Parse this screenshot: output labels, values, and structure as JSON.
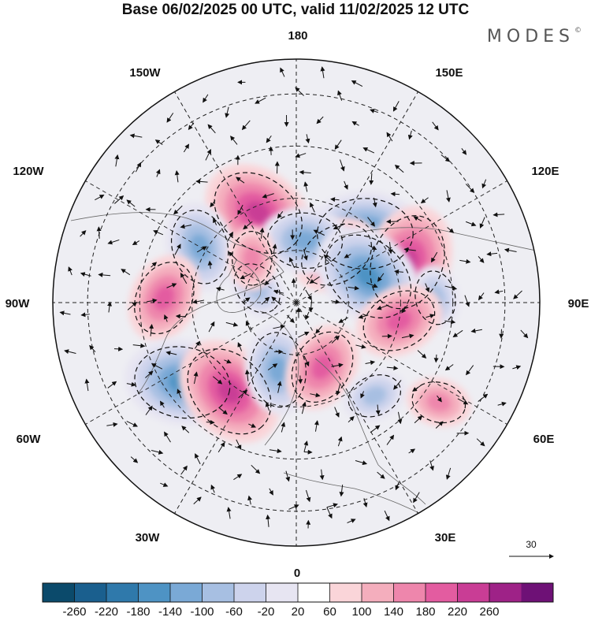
{
  "title": "Base 06/02/2025 00 UTC, valid 11/02/2025 12 UTC",
  "brand": "MODES",
  "brand_mark": "©",
  "meridian_labels": {
    "top": "180",
    "bottom": "0",
    "left": "90W",
    "right": "90E",
    "nw_upper": "150W",
    "nw_lower": "120W",
    "ne_upper": "150E",
    "ne_lower": "120E",
    "sw_upper": "60W",
    "sw_lower": "30W",
    "se_upper": "60E",
    "se_lower": "30E"
  },
  "reference_vector": {
    "label": "30"
  },
  "colorbar": {
    "ticks": [
      "-260",
      "-220",
      "-180",
      "-140",
      "-100",
      "-60",
      "-20",
      "20",
      "60",
      "100",
      "140",
      "180",
      "220",
      "260"
    ],
    "colors": [
      "#0b4a6b",
      "#1a5f8e",
      "#2f79ab",
      "#4e93c4",
      "#7aa9d6",
      "#a7bfe2",
      "#cdd3ec",
      "#e7e5f2",
      "#ffffff",
      "#fad5d9",
      "#f4aebd",
      "#ee86ac",
      "#e35ca0",
      "#c93d95",
      "#9e2287",
      "#6e1176"
    ]
  },
  "anomalies": [
    {
      "c": "neg",
      "lvl": 3,
      "lon": 135,
      "lat": 62
    },
    {
      "c": "pos",
      "lvl": 3,
      "lon": -157,
      "lat": 62
    },
    {
      "c": "neg",
      "lvl": 2,
      "lon": -120,
      "lat": 58
    },
    {
      "c": "pos",
      "lvl": 3,
      "lon": 110,
      "lat": 56
    },
    {
      "c": "pos",
      "lvl": 2,
      "lon": 140,
      "lat": 72
    },
    {
      "c": "neg",
      "lvl": 2,
      "lon": 172,
      "lat": 72
    },
    {
      "c": "neg",
      "lvl": 3,
      "lon": 110,
      "lat": 68
    },
    {
      "c": "neg",
      "lvl": 1,
      "lon": 92,
      "lat": 50
    },
    {
      "c": "pos",
      "lvl": 2,
      "lon": -92,
      "lat": 52
    },
    {
      "c": "pos",
      "lvl": 2,
      "lon": 80,
      "lat": 60
    },
    {
      "c": "neg",
      "lvl": 3,
      "lon": -55,
      "lat": 50
    },
    {
      "c": "pos",
      "lvl": 3,
      "lon": -37,
      "lat": 58
    },
    {
      "c": "neg",
      "lvl": 2,
      "lon": -15,
      "lat": 70
    },
    {
      "c": "pos",
      "lvl": 2,
      "lon": 22,
      "lat": 70
    },
    {
      "c": "neg",
      "lvl": 1,
      "lon": 40,
      "lat": 55
    },
    {
      "c": "pos",
      "lvl": 1,
      "lon": 55,
      "lat": 40
    },
    {
      "c": "neg",
      "lvl": 1,
      "lon": -110,
      "lat": 78
    },
    {
      "c": "pos",
      "lvl": 1,
      "lon": -135,
      "lat": 72
    }
  ]
}
